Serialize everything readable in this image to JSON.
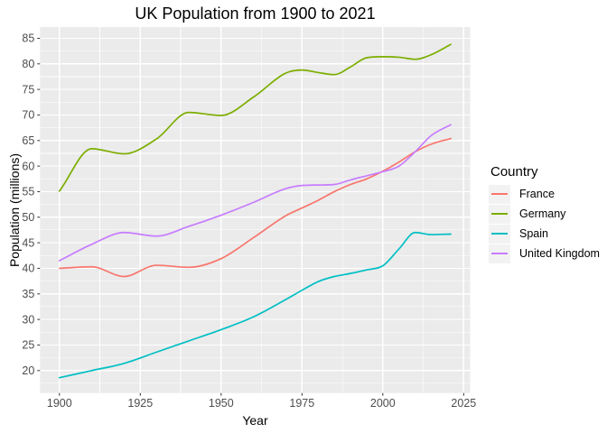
{
  "chart_data": {
    "type": "line",
    "title": "UK Population from 1900 to 2021",
    "xlabel": "Year",
    "ylabel": "Population (millions)",
    "x_ticks": [
      1900,
      1925,
      1950,
      1975,
      2000,
      2025
    ],
    "y_ticks": [
      20,
      25,
      30,
      35,
      40,
      45,
      50,
      55,
      60,
      65,
      70,
      75,
      80,
      85
    ],
    "xlim": [
      1894.0,
      2027.0
    ],
    "ylim": [
      15.6,
      87.2
    ],
    "grid": "white major and minor gridlines on grey panel",
    "legend": {
      "title": "Country",
      "position": "right"
    },
    "x": [
      1900,
      1910,
      1920,
      1930,
      1940,
      1950,
      1960,
      1970,
      1975,
      1980,
      1985,
      1990,
      1995,
      2000,
      2005,
      2010,
      2015,
      2021
    ],
    "series": [
      {
        "name": "France",
        "color": "#F8766D",
        "values": [
          40.0,
          40.3,
          38.4,
          40.6,
          40.2,
          41.9,
          46.0,
          50.3,
          51.8,
          53.3,
          55.0,
          56.4,
          57.5,
          59.0,
          60.8,
          62.8,
          64.3,
          65.4
        ]
      },
      {
        "name": "Germany",
        "color": "#7CAE00",
        "values": [
          55.1,
          63.4,
          62.4,
          65.3,
          70.5,
          69.9,
          73.5,
          78.2,
          78.8,
          78.3,
          77.9,
          79.4,
          81.2,
          81.4,
          81.3,
          80.9,
          81.8,
          83.8
        ]
      },
      {
        "name": "Spain",
        "color": "#00BFC4",
        "values": [
          18.6,
          20.0,
          21.4,
          23.6,
          25.8,
          28.0,
          30.5,
          33.9,
          35.7,
          37.4,
          38.4,
          39.0,
          39.7,
          40.5,
          43.8,
          47.0,
          46.6,
          46.7
        ]
      },
      {
        "name": "United Kingdom",
        "color": "#C77CFF",
        "values": [
          41.5,
          44.7,
          47.0,
          46.3,
          48.2,
          50.4,
          52.9,
          55.6,
          56.2,
          56.3,
          56.4,
          57.3,
          58.1,
          58.9,
          60.0,
          62.8,
          66.0,
          68.1
        ]
      }
    ]
  },
  "colors": {
    "panel_bg": "#EBEBEB",
    "gridline": "#FFFFFF",
    "axis_text": "#4D4D4D",
    "tick_mark": "#333333",
    "title_text": "#000000",
    "legend_key_bg": "#F2F2F2"
  }
}
